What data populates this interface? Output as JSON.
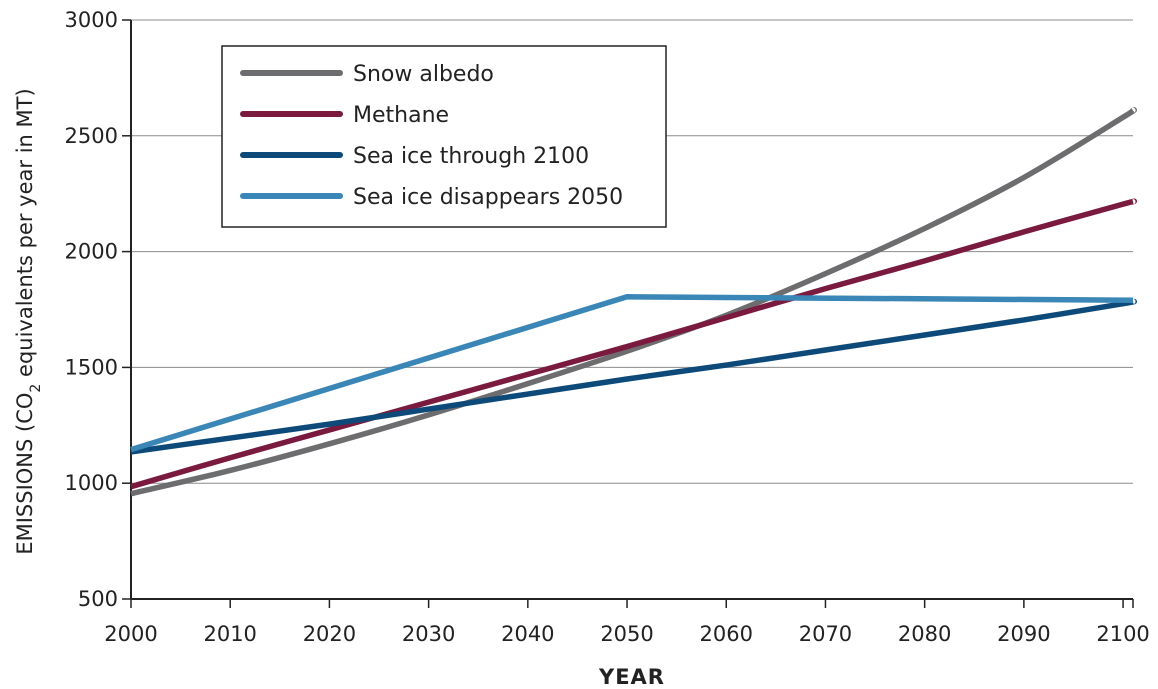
{
  "chart_data": {
    "type": "line",
    "xlabel": "YEAR",
    "ylabel": {
      "prefix": "EMISSIONS (CO",
      "subscript": "2",
      "suffix": " equivalents per year in MT)"
    },
    "xlim": [
      2000,
      2101
    ],
    "ylim": [
      500,
      3000
    ],
    "x_ticks": [
      "2000",
      "2010",
      "2020",
      "2030",
      "2040",
      "2050",
      "2060",
      "2070",
      "2080",
      "2090",
      "2100"
    ],
    "y_ticks": [
      "500",
      "1000",
      "1500",
      "2000",
      "2500",
      "3000"
    ],
    "grid": "horizontal",
    "legend_position": "top-left",
    "series": [
      {
        "name": "Snow albedo",
        "color": "#6d6d6f",
        "x": [
          2000,
          2010,
          2020,
          2030,
          2040,
          2050,
          2060,
          2070,
          2080,
          2090,
          2100,
          2101
        ],
        "y": [
          955,
          1055,
          1170,
          1295,
          1430,
          1570,
          1725,
          1905,
          2100,
          2320,
          2580,
          2610
        ]
      },
      {
        "name": "Methane",
        "color": "#7a1a3f",
        "x": [
          2000,
          2010,
          2020,
          2030,
          2040,
          2050,
          2060,
          2070,
          2080,
          2090,
          2100,
          2101
        ],
        "y": [
          985,
          1110,
          1230,
          1350,
          1470,
          1590,
          1715,
          1840,
          1960,
          2085,
          2205,
          2215
        ]
      },
      {
        "name": "Sea ice through 2100",
        "color": "#0d4a7a",
        "x": [
          2000,
          2010,
          2020,
          2030,
          2040,
          2050,
          2060,
          2070,
          2080,
          2090,
          2100,
          2101
        ],
        "y": [
          1135,
          1195,
          1255,
          1320,
          1385,
          1450,
          1510,
          1575,
          1640,
          1705,
          1775,
          1785
        ]
      },
      {
        "name": "Sea ice disappears 2050",
        "color": "#3a86b6",
        "x": [
          2000,
          2050,
          2101
        ],
        "y": [
          1145,
          1805,
          1790
        ]
      }
    ]
  }
}
